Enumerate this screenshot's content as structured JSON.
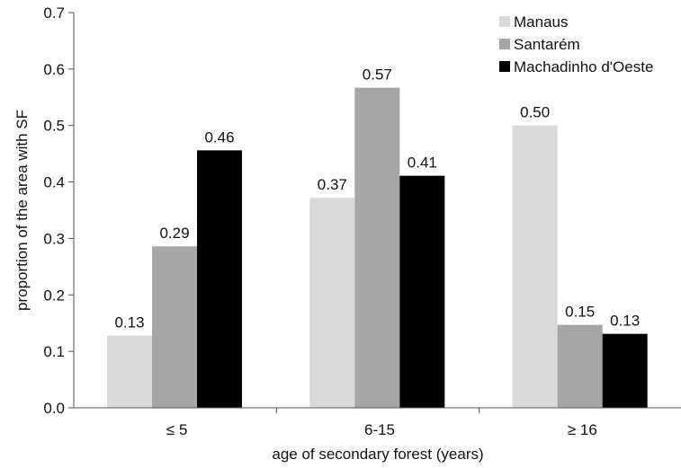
{
  "chart_data": {
    "type": "bar",
    "title": "",
    "xlabel": "age of secondary forest (years)",
    "ylabel": "proportion of the area with SF",
    "categories": [
      "≤ 5",
      "6-15",
      "≥ 16"
    ],
    "ylim": [
      0,
      0.7
    ],
    "yticks": [
      0.0,
      0.1,
      0.2,
      0.3,
      0.4,
      0.5,
      0.6,
      0.7
    ],
    "ytick_labels": [
      "0.0",
      "0.1",
      "0.2",
      "0.3",
      "0.4",
      "0.5",
      "0.6",
      "0.7"
    ],
    "grid": false,
    "legend_position": "top-right",
    "series": [
      {
        "name": "Manaus",
        "color": "#d9d9d9",
        "values": [
          0.128,
          0.372,
          0.5
        ],
        "labels": [
          "0.13",
          "0.37",
          "0.50"
        ]
      },
      {
        "name": "Santarém",
        "color": "#a6a6a6",
        "values": [
          0.286,
          0.567,
          0.147
        ],
        "labels": [
          "0.29",
          "0.57",
          "0.15"
        ]
      },
      {
        "name": "Machadinho d'Oeste",
        "color": "#000000",
        "values": [
          0.456,
          0.411,
          0.131
        ],
        "labels": [
          "0.46",
          "0.41",
          "0.13"
        ]
      }
    ]
  }
}
